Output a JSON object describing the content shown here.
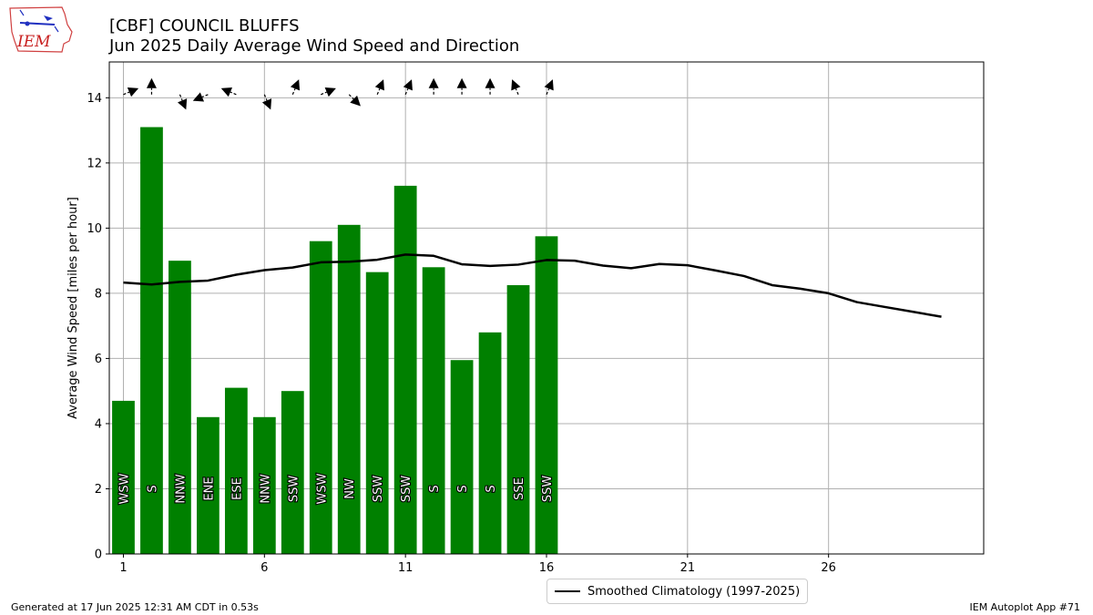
{
  "title": "[CBF] COUNCIL BLUFFS",
  "subtitle": "Jun 2025 Daily Average Wind Speed and Direction",
  "footer_left": "Generated at 17 Jun 2025 12:31 AM CDT in 0.53s",
  "footer_right": "IEM Autoplot App #71",
  "logo_text": "IEM",
  "colors": {
    "bar": "#008000",
    "climo": "#000000",
    "grid": "#b0b0b0"
  },
  "chart_data": {
    "type": "bar",
    "xlabel": "",
    "ylabel": "Average Wind Speed [miles per hour]",
    "xlim": [
      0.5,
      31.5
    ],
    "ylim": [
      0,
      15.1
    ],
    "xticks": [
      1,
      6,
      11,
      16,
      21,
      26
    ],
    "yticks": [
      0,
      2,
      4,
      6,
      8,
      10,
      12,
      14
    ],
    "grid": true,
    "legend_position": "bottom-center",
    "bars": {
      "days": [
        1,
        2,
        3,
        4,
        5,
        6,
        7,
        8,
        9,
        10,
        11,
        12,
        13,
        14,
        15,
        16
      ],
      "speed": [
        4.7,
        13.1,
        9.0,
        4.2,
        5.1,
        4.2,
        5.0,
        9.6,
        10.1,
        8.65,
        11.3,
        8.8,
        5.95,
        6.8,
        8.25,
        9.75
      ],
      "direction": [
        "WSW",
        "S",
        "NNW",
        "ENE",
        "ESE",
        "NNW",
        "SSW",
        "WSW",
        "NW",
        "SSW",
        "SSW",
        "S",
        "S",
        "S",
        "SSE",
        "SSW"
      ],
      "arrow_heading_deg": [
        67.5,
        0,
        157.5,
        247.5,
        292.5,
        157.5,
        22.5,
        67.5,
        135,
        22.5,
        22.5,
        0,
        0,
        0,
        337.5,
        22.5
      ]
    },
    "series": [
      {
        "name": "Smoothed Climatology (1997-2025)",
        "type": "line",
        "x": [
          1,
          2,
          3,
          4,
          5,
          6,
          7,
          8,
          9,
          10,
          11,
          12,
          13,
          14,
          15,
          16,
          17,
          18,
          19,
          20,
          21,
          22,
          23,
          24,
          25,
          26,
          27,
          28,
          29,
          30
        ],
        "values": [
          8.33,
          8.27,
          8.35,
          8.39,
          8.57,
          8.71,
          8.79,
          8.95,
          8.97,
          9.03,
          9.19,
          9.15,
          8.89,
          8.84,
          8.88,
          9.02,
          9.0,
          8.85,
          8.77,
          8.9,
          8.86,
          8.7,
          8.53,
          8.25,
          8.14,
          8.0,
          7.73,
          7.58,
          7.43,
          7.28
        ]
      }
    ]
  }
}
